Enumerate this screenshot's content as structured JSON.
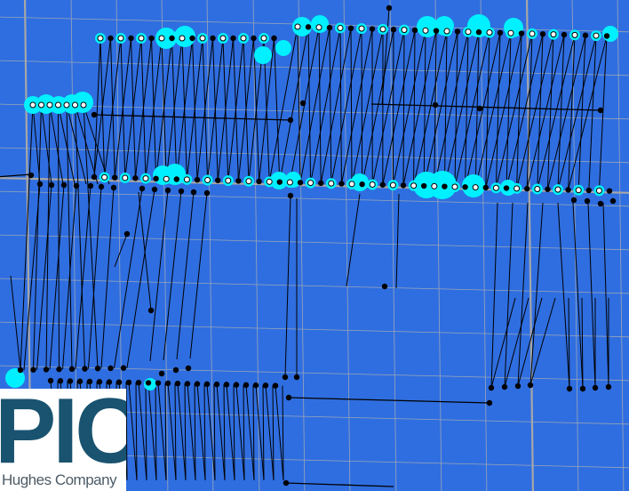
{
  "map": {
    "background_color": "#2f6ee0",
    "grid_color": "#9aa6b8",
    "grid_major_color": "#a7a7a7",
    "line_color": "#000000",
    "node_color": "#000000",
    "highlight_color": "#00f0ff",
    "marker_fill": "#ffffff"
  },
  "logo": {
    "mark": "PIC",
    "company": "Hughes Company",
    "mark_color": "#19536f",
    "company_color": "#4d5b66"
  }
}
